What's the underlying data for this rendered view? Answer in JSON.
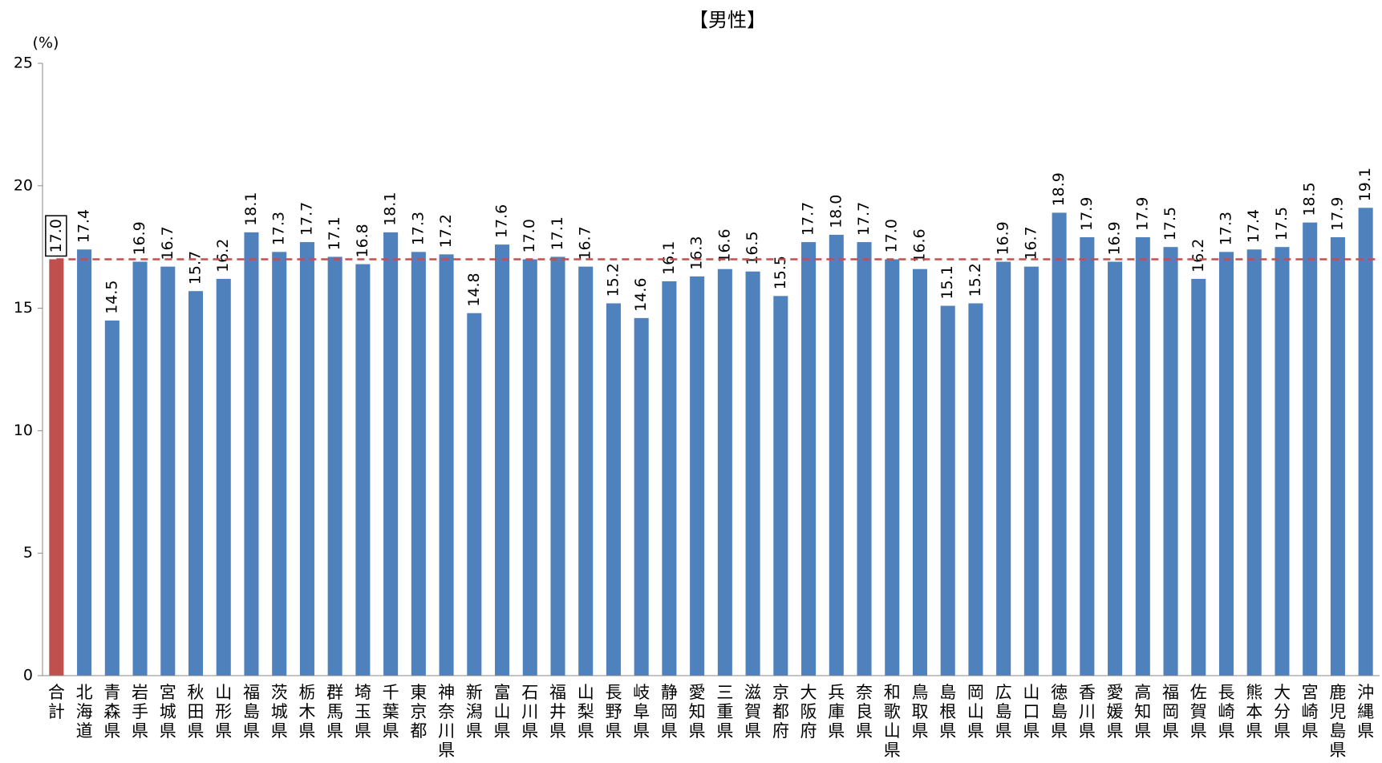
{
  "chart_data": {
    "type": "bar",
    "title": "【男性】",
    "y_unit": "(%)",
    "categories": [
      "合計",
      "北海道",
      "青森県",
      "岩手県",
      "宮城県",
      "秋田県",
      "山形県",
      "福島県",
      "茨城県",
      "栃木県",
      "群馬県",
      "埼玉県",
      "千葉県",
      "東京都",
      "神奈川県",
      "新潟県",
      "富山県",
      "石川県",
      "福井県",
      "山梨県",
      "長野県",
      "岐阜県",
      "静岡県",
      "愛知県",
      "三重県",
      "滋賀県",
      "京都府",
      "大阪府",
      "兵庫県",
      "奈良県",
      "和歌山県",
      "鳥取県",
      "島根県",
      "岡山県",
      "広島県",
      "山口県",
      "徳島県",
      "香川県",
      "愛媛県",
      "高知県",
      "福岡県",
      "佐賀県",
      "長崎県",
      "熊本県",
      "大分県",
      "宮崎県",
      "鹿児島県",
      "沖縄県"
    ],
    "values": [
      17.0,
      17.4,
      14.5,
      16.9,
      16.7,
      15.7,
      16.2,
      18.1,
      17.3,
      17.7,
      17.1,
      16.8,
      18.1,
      17.3,
      17.2,
      14.8,
      17.6,
      17.0,
      17.1,
      16.7,
      15.2,
      14.6,
      16.1,
      16.3,
      16.6,
      16.5,
      15.5,
      17.7,
      18.0,
      17.7,
      17.0,
      16.6,
      15.1,
      15.2,
      16.9,
      16.7,
      18.9,
      17.9,
      16.9,
      17.9,
      17.5,
      16.2,
      17.3,
      17.4,
      17.5,
      18.5,
      17.9,
      19.1
    ],
    "value_labels": [
      "17.0",
      "17.4",
      "14.5",
      "16.9",
      "16.7",
      "15.7",
      "16.2",
      "18.1",
      "17.3",
      "17.7",
      "17.1",
      "16.8",
      "18.1",
      "17.3",
      "17.2",
      "14.8",
      "17.6",
      "17.0",
      "17.1",
      "16.7",
      "15.2",
      "14.6",
      "16.1",
      "16.3",
      "16.6",
      "16.5",
      "15.5",
      "17.7",
      "18.0",
      "17.7",
      "17.0",
      "16.6",
      "15.1",
      "15.2",
      "16.9",
      "16.7",
      "18.9",
      "17.9",
      "16.9",
      "17.9",
      "17.5",
      "16.2",
      "17.3",
      "17.4",
      "17.5",
      "18.5",
      "17.9",
      "19.1"
    ],
    "colors": [
      "#c0504d",
      "#4f81bd",
      "#4f81bd",
      "#4f81bd",
      "#4f81bd",
      "#4f81bd",
      "#4f81bd",
      "#4f81bd",
      "#4f81bd",
      "#4f81bd",
      "#4f81bd",
      "#4f81bd",
      "#4f81bd",
      "#4f81bd",
      "#4f81bd",
      "#4f81bd",
      "#4f81bd",
      "#4f81bd",
      "#4f81bd",
      "#4f81bd",
      "#4f81bd",
      "#4f81bd",
      "#4f81bd",
      "#4f81bd",
      "#4f81bd",
      "#4f81bd",
      "#4f81bd",
      "#4f81bd",
      "#4f81bd",
      "#4f81bd",
      "#4f81bd",
      "#4f81bd",
      "#4f81bd",
      "#4f81bd",
      "#4f81bd",
      "#4f81bd",
      "#4f81bd",
      "#4f81bd",
      "#4f81bd",
      "#4f81bd",
      "#4f81bd",
      "#4f81bd",
      "#4f81bd",
      "#4f81bd",
      "#4f81bd",
      "#4f81bd",
      "#4f81bd",
      "#4f81bd"
    ],
    "reference_line_color": "#c0504d",
    "ylim": [
      0,
      25
    ],
    "yticks": [
      0,
      5,
      10,
      15,
      20,
      25
    ],
    "grid": false
  }
}
